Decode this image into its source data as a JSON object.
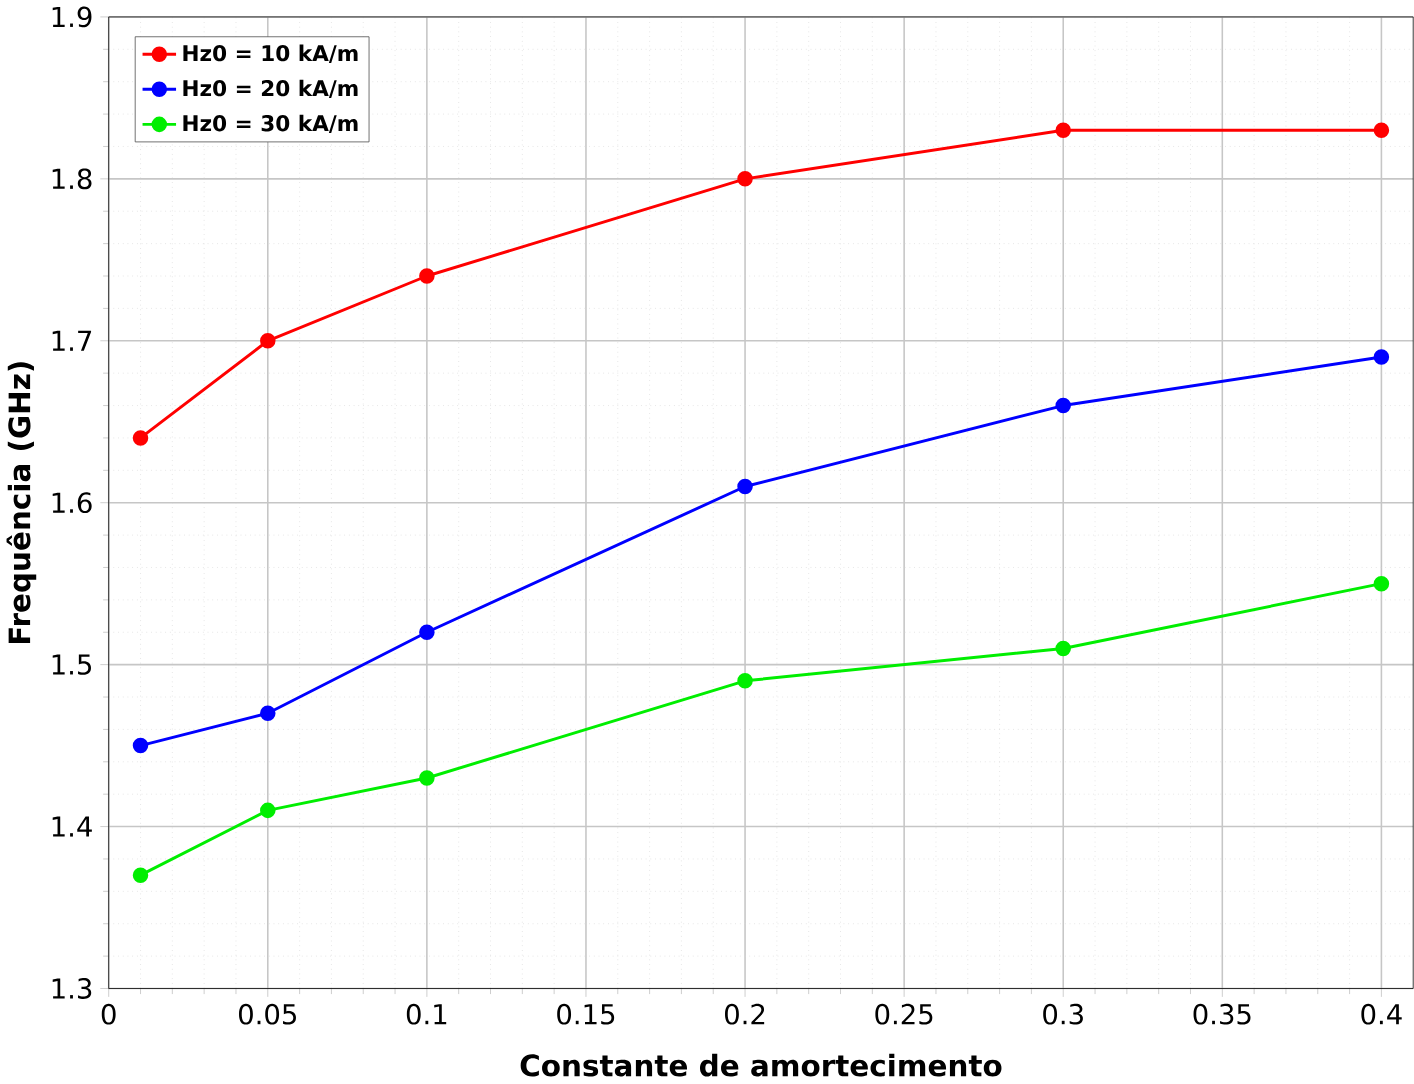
{
  "chart_data": {
    "type": "line",
    "xlabel": "Constante de amortecimento",
    "ylabel": "Frequência (GHz)",
    "x": [
      0.01,
      0.05,
      0.1,
      0.2,
      0.3,
      0.4
    ],
    "series": [
      {
        "name": "Hz0 = 10 kA/m",
        "color": "#ff0000",
        "values": [
          1.64,
          1.7,
          1.74,
          1.8,
          1.83,
          1.83
        ]
      },
      {
        "name": "Hz0 = 20 kA/m",
        "color": "#0000ff",
        "values": [
          1.45,
          1.47,
          1.52,
          1.61,
          1.66,
          1.69
        ]
      },
      {
        "name": "Hz0 = 30 kA/m",
        "color": "#00ee00",
        "values": [
          1.37,
          1.41,
          1.43,
          1.49,
          1.51,
          1.55
        ]
      }
    ],
    "xlim": [
      0,
      0.41
    ],
    "ylim": [
      1.3,
      1.9
    ],
    "xticks": [
      0,
      0.05,
      0.1,
      0.15,
      0.2,
      0.25,
      0.3,
      0.35,
      0.4
    ],
    "yticks": [
      1.3,
      1.4,
      1.5,
      1.6,
      1.7,
      1.8,
      1.9
    ],
    "grid": true,
    "legend": "top left",
    "marker": "circle",
    "line_style": "solid"
  }
}
